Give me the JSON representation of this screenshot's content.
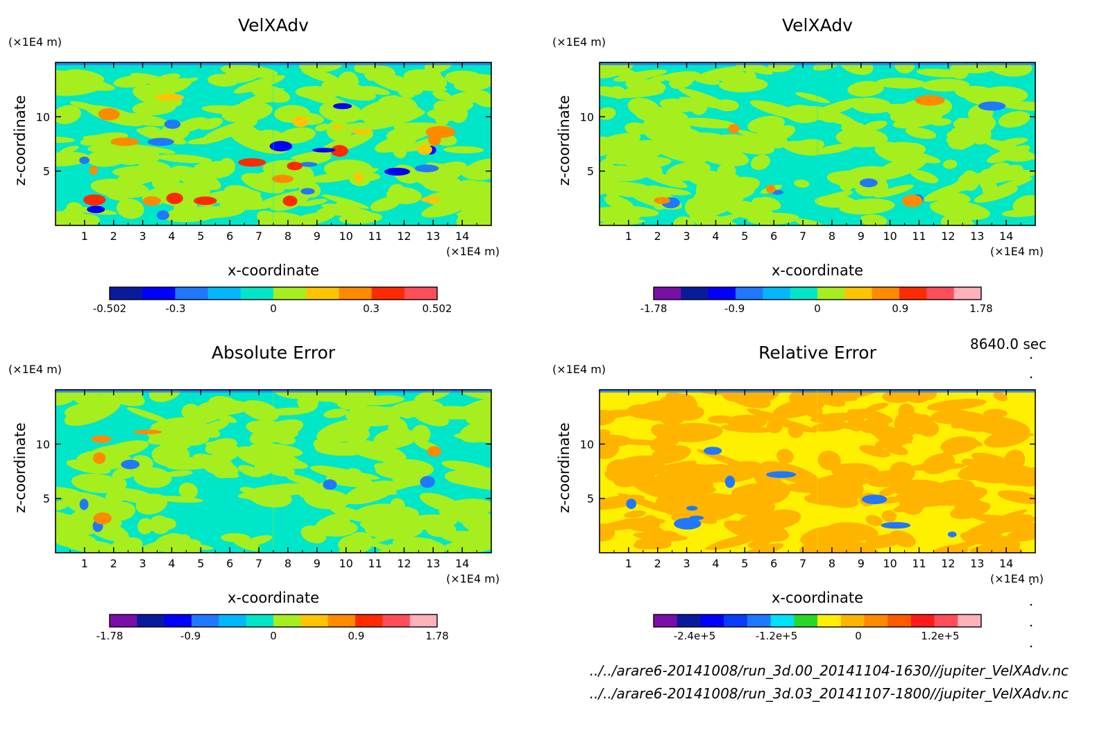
{
  "time_label": "8640.0 sec",
  "footer": {
    "file_1": "../../arare6-20141008/run_3d.00_20141104-1630//jupiter_VelXAdv.nc",
    "file_2": "../../arare6-20141008/run_3d.03_20141107-1800//jupiter_VelXAdv.nc"
  },
  "chart_data": [
    {
      "type": "heatmap",
      "title": "VelXAdv",
      "xlabel": "x-coordinate",
      "ylabel": "z-coordinate",
      "x_unit": "(×1E4 m)",
      "y_unit": "(×1E4 m)",
      "xlim": [
        0,
        15
      ],
      "ylim": [
        0,
        15
      ],
      "x_ticks": [
        "1",
        "2",
        "3",
        "4",
        "5",
        "6",
        "7",
        "8",
        "9",
        "10",
        "11",
        "12",
        "13",
        "14"
      ],
      "y_ticks": [
        "5",
        "10"
      ],
      "colorbar": {
        "ticks": [
          {
            "label": "-0.502",
            "value": -0.502
          },
          {
            "label": "-0.3",
            "value": -0.3
          },
          {
            "label": "0",
            "value": 0
          },
          {
            "label": "0.3",
            "value": 0.3
          },
          {
            "label": "0.502",
            "value": 0.502
          }
        ],
        "range": [
          -0.502,
          0.502
        ],
        "colors": [
          "#0a1a9e",
          "#0000ff",
          "#1f78ff",
          "#00b7ff",
          "#00e6c8",
          "#a6ee1e",
          "#ffc400",
          "#ff8a00",
          "#ff2a00",
          "#ff4d5a"
        ]
      },
      "palette": {
        "background": "#00e6c8",
        "dominant": [
          "#00e6c8",
          "#a6ee1e"
        ],
        "accents": [
          "#1f78ff",
          "#ff8a00",
          "#ffc400",
          "#ff2a00",
          "#0000ff"
        ]
      }
    },
    {
      "type": "heatmap",
      "title": "VelXAdv",
      "xlabel": "x-coordinate",
      "ylabel": "z-coordinate",
      "x_unit": "(×1E4 m)",
      "y_unit": "(×1E4 m)",
      "xlim": [
        0,
        15
      ],
      "ylim": [
        0,
        15
      ],
      "x_ticks": [
        "1",
        "2",
        "3",
        "4",
        "5",
        "6",
        "7",
        "8",
        "9",
        "10",
        "11",
        "12",
        "13",
        "14"
      ],
      "y_ticks": [
        "5",
        "10"
      ],
      "colorbar": {
        "ticks": [
          {
            "label": "-1.78",
            "value": -1.78
          },
          {
            "label": "-0.9",
            "value": -0.9
          },
          {
            "label": "0",
            "value": 0
          },
          {
            "label": "0.9",
            "value": 0.9
          },
          {
            "label": "1.78",
            "value": 1.78
          }
        ],
        "range": [
          -1.78,
          1.78
        ],
        "colors": [
          "#7a0ea8",
          "#0a1a9e",
          "#0000ff",
          "#1f78ff",
          "#00b7ff",
          "#00e6c8",
          "#a6ee1e",
          "#ffc400",
          "#ff8a00",
          "#ff2a00",
          "#ff4d5a",
          "#ffb0b8"
        ]
      },
      "palette": {
        "background": "#00e6c8",
        "dominant": [
          "#00e6c8",
          "#a6ee1e"
        ],
        "accents": [
          "#1f78ff",
          "#ff8a00"
        ]
      }
    },
    {
      "type": "heatmap",
      "title": "Absolute Error",
      "xlabel": "x-coordinate",
      "ylabel": "z-coordinate",
      "x_unit": "(×1E4 m)",
      "y_unit": "(×1E4 m)",
      "xlim": [
        0,
        15
      ],
      "ylim": [
        0,
        15
      ],
      "x_ticks": [
        "1",
        "2",
        "3",
        "4",
        "5",
        "6",
        "7",
        "8",
        "9",
        "10",
        "11",
        "12",
        "13",
        "14"
      ],
      "y_ticks": [
        "5",
        "10"
      ],
      "colorbar": {
        "ticks": [
          {
            "label": "-1.78",
            "value": -1.78
          },
          {
            "label": "-0.9",
            "value": -0.9
          },
          {
            "label": "0",
            "value": 0
          },
          {
            "label": "0.9",
            "value": 0.9
          },
          {
            "label": "1.78",
            "value": 1.78
          }
        ],
        "range": [
          -1.78,
          1.78
        ],
        "colors": [
          "#7a0ea8",
          "#0a1a9e",
          "#0000ff",
          "#1f78ff",
          "#00b7ff",
          "#00e6c8",
          "#a6ee1e",
          "#ffc400",
          "#ff8a00",
          "#ff2a00",
          "#ff4d5a",
          "#ffb0b8"
        ]
      },
      "palette": {
        "background": "#00e6c8",
        "dominant": [
          "#a6ee1e",
          "#00e6c8"
        ],
        "accents": [
          "#1f78ff",
          "#ff8a00"
        ]
      }
    },
    {
      "type": "heatmap",
      "title": "Relative Error",
      "xlabel": "x-coordinate",
      "ylabel": "z-coordinate",
      "x_unit": "(×1E4 m)",
      "y_unit": "(×1E4 m)",
      "xlim": [
        0,
        15
      ],
      "ylim": [
        0,
        15
      ],
      "x_ticks": [
        "1",
        "2",
        "3",
        "4",
        "5",
        "6",
        "7",
        "8",
        "9",
        "10",
        "11",
        "12",
        "13",
        "14"
      ],
      "y_ticks": [
        "5",
        "10"
      ],
      "colorbar": {
        "ticks": [
          {
            "label": "-2.4e+5",
            "value": -240000
          },
          {
            "label": "-1.2e+5",
            "value": -120000
          },
          {
            "label": "0",
            "value": 0
          },
          {
            "label": "1.2e+5",
            "value": 120000
          }
        ],
        "range": [
          -300000,
          180000
        ],
        "colors": [
          "#7a0ea8",
          "#0a1a9e",
          "#0000ff",
          "#0a3cff",
          "#1f78ff",
          "#00e0ff",
          "#2ad62a",
          "#fff000",
          "#ffb400",
          "#ff8a00",
          "#ff5a00",
          "#ff1a1a",
          "#ff4d5a",
          "#ffb0b8"
        ]
      },
      "palette": {
        "background": "#fff000",
        "dominant": [
          "#fff000",
          "#ffb400"
        ],
        "accents": [
          "#1f78ff"
        ]
      }
    }
  ]
}
